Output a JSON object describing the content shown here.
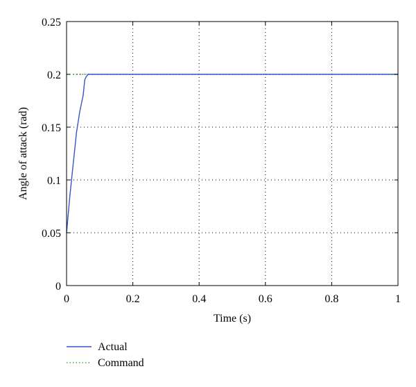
{
  "chart_data": {
    "type": "line",
    "title": "",
    "xlabel": "Time (s)",
    "ylabel": "Angle of attack (rad)",
    "xlim": [
      0,
      1
    ],
    "ylim": [
      0,
      0.25
    ],
    "x_ticks": [
      0,
      0.2,
      0.4,
      0.6,
      0.8,
      1
    ],
    "x_tick_labels": [
      "0",
      "0.2",
      "0.4",
      "0.6",
      "0.8",
      "1"
    ],
    "y_ticks": [
      0,
      0.05,
      0.1,
      0.15,
      0.2,
      0.25
    ],
    "y_tick_labels": [
      "0",
      "0.05",
      "0.1",
      "0.15",
      "0.2",
      "0.25"
    ],
    "grid": true,
    "grid_style": "dotted",
    "legend_position": "below the plot, left",
    "series": [
      {
        "name": "Actual",
        "color": "#3355cc",
        "style": "solid",
        "x": [
          0,
          0.01,
          0.02,
          0.03,
          0.04,
          0.05,
          0.055,
          0.06,
          0.065,
          0.07,
          1
        ],
        "y": [
          0.05,
          0.085,
          0.115,
          0.145,
          0.165,
          0.18,
          0.195,
          0.198,
          0.2,
          0.2,
          0.2
        ]
      },
      {
        "name": "Command",
        "color": "#33aa33",
        "style": "dotted",
        "x": [
          0,
          1
        ],
        "y": [
          0.2,
          0.2
        ]
      }
    ]
  }
}
